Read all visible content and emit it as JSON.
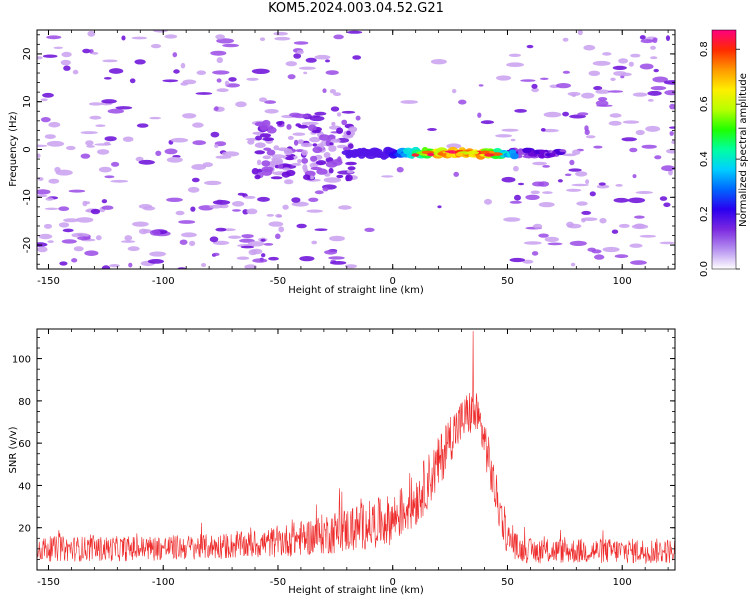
{
  "title": "KOM5.2024.003.04.52.G21",
  "colors": {
    "snr_line": "#ee2a2a",
    "blob_low": "#c9a0f0",
    "blob_mid": "#9a4ae6",
    "blob_high": "#6a0ad8",
    "colormap": [
      "#ffffff",
      "#b58ff0",
      "#7b28e0",
      "#2a00f0",
      "#0066ff",
      "#00d0ff",
      "#00ffa0",
      "#20ff00",
      "#b8ff00",
      "#ffee00",
      "#ff9a00",
      "#ff2a00",
      "#ff0080"
    ]
  },
  "chart_data": [
    {
      "type": "heatmap",
      "name": "spectrogram",
      "xlabel": "Height of straight line (km)",
      "ylabel": "Frequency (Hz)",
      "xlim": [
        -155,
        123
      ],
      "ylim": [
        -25,
        25
      ],
      "x_ticks": [
        -150,
        -100,
        -50,
        0,
        50,
        100
      ],
      "y_ticks": [
        -20,
        -10,
        0,
        10,
        20
      ],
      "colorbar": {
        "label": "Normalized spectral amplitude",
        "range": [
          0,
          0.87
        ],
        "ticks": [
          "0.0",
          "0.2",
          "0.4",
          "0.6",
          "0.8"
        ]
      },
      "signal_band": {
        "x_start": -20,
        "x_end": 53,
        "frequency": -0.8,
        "peak_x": [
          20,
          38
        ],
        "peak_amplitude": 0.85
      },
      "noise": "scattered low-amplitude spots across whole plane; denser cluster near -50 to -20 km and 50 to 75 km"
    },
    {
      "type": "line",
      "name": "snr",
      "xlabel": "Height of straight line (km)",
      "ylabel": "SNR (v/v)",
      "xlim": [
        -155,
        123
      ],
      "ylim": [
        0,
        114
      ],
      "x_ticks": [
        -150,
        -100,
        -50,
        0,
        50,
        100
      ],
      "y_ticks": [
        20,
        40,
        60,
        80,
        100
      ],
      "series": [
        {
          "color": "#ee2a2a",
          "envelope_x": [
            -155,
            -120,
            -80,
            -60,
            -40,
            -20,
            0,
            10,
            20,
            25,
            30,
            33,
            35,
            37,
            40,
            45,
            50,
            55,
            60,
            80,
            123
          ],
          "envelope_mean": [
            10,
            10,
            11,
            12,
            15,
            19,
            24,
            33,
            50,
            63,
            70,
            74,
            75,
            72,
            62,
            35,
            15,
            10,
            9,
            9,
            9
          ],
          "envelope_spread": [
            12,
            12,
            12,
            13,
            17,
            22,
            24,
            26,
            26,
            24,
            22,
            22,
            24,
            22,
            22,
            22,
            16,
            12,
            12,
            12,
            12
          ],
          "peak": {
            "x": 35,
            "y": 113
          }
        }
      ]
    }
  ]
}
